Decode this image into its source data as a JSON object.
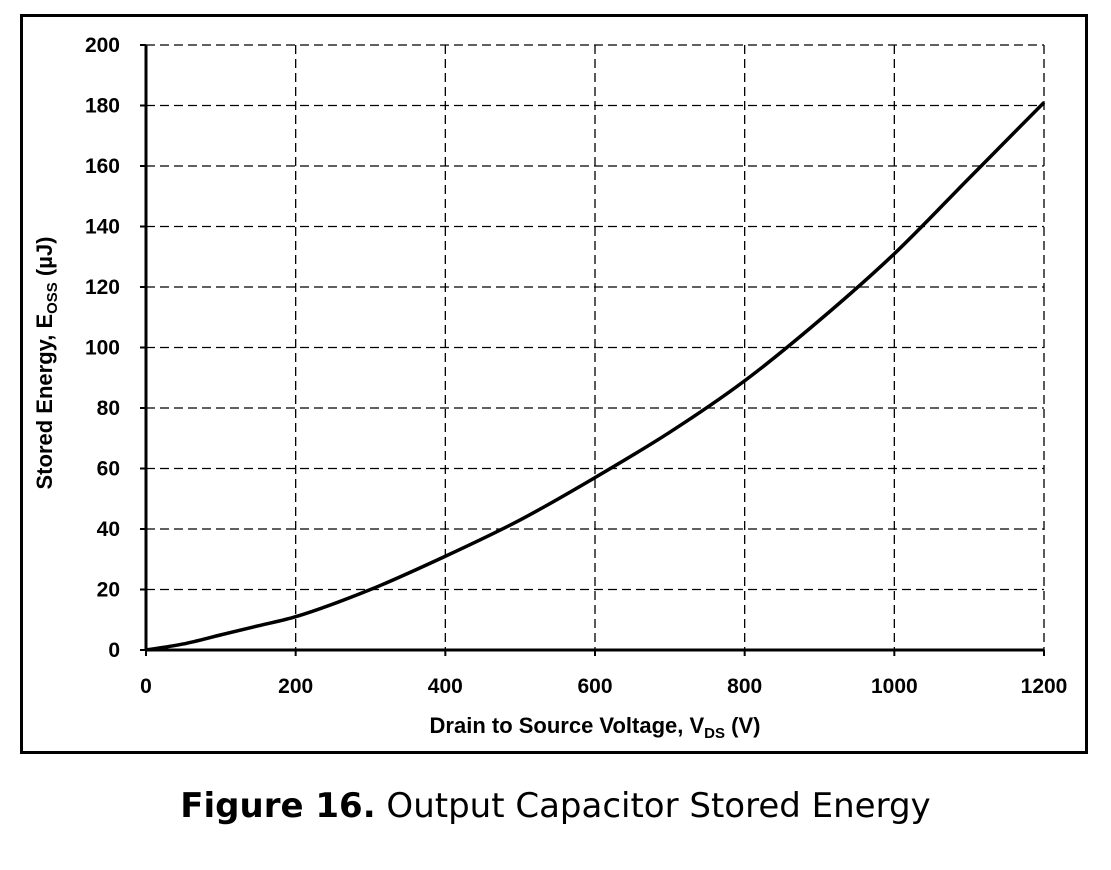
{
  "chart_data": {
    "type": "line",
    "xlabel": {
      "main": "Drain to Source Voltage, V",
      "sub": "DS",
      "unit": " (V)"
    },
    "ylabel": {
      "main": "Stored Energy, E",
      "sub": "OSS",
      "unit": "  (µJ)"
    },
    "xlim": [
      0,
      1200
    ],
    "ylim": [
      0,
      200
    ],
    "xticks": [
      "0",
      "200",
      "400",
      "600",
      "800",
      "1000",
      "1200"
    ],
    "yticks": [
      "0",
      "20",
      "40",
      "60",
      "80",
      "100",
      "120",
      "140",
      "160",
      "180",
      "200"
    ],
    "grid": true,
    "grid_style": "dashed",
    "line_color": "#000000",
    "series": [
      {
        "x": [
          0,
          50,
          100,
          150,
          200,
          300,
          400,
          500,
          600,
          700,
          800,
          900,
          1000,
          1100,
          1200
        ],
        "values": [
          0,
          2,
          5,
          8,
          11,
          20,
          31,
          43,
          57,
          72,
          89,
          109,
          131,
          156,
          181
        ]
      }
    ]
  },
  "caption": {
    "number": "Figure 16.",
    "text": " Output Capacitor Stored Energy"
  }
}
